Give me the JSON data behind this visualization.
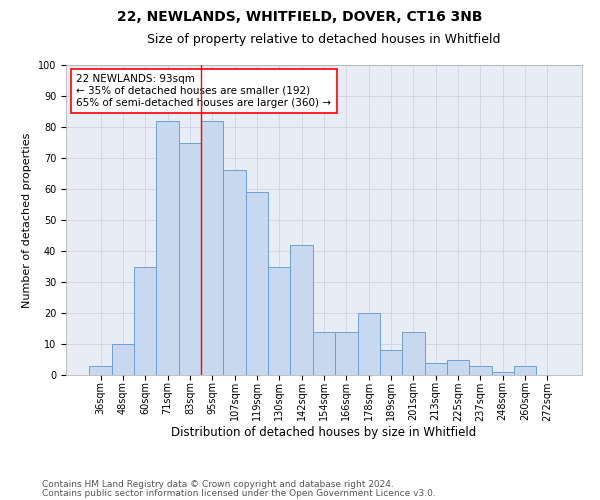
{
  "title1": "22, NEWLANDS, WHITFIELD, DOVER, CT16 3NB",
  "title2": "Size of property relative to detached houses in Whitfield",
  "xlabel": "Distribution of detached houses by size in Whitfield",
  "ylabel": "Number of detached properties",
  "categories": [
    "36sqm",
    "48sqm",
    "60sqm",
    "71sqm",
    "83sqm",
    "95sqm",
    "107sqm",
    "119sqm",
    "130sqm",
    "142sqm",
    "154sqm",
    "166sqm",
    "178sqm",
    "189sqm",
    "201sqm",
    "213sqm",
    "225sqm",
    "237sqm",
    "248sqm",
    "260sqm",
    "272sqm"
  ],
  "values": [
    3,
    10,
    35,
    82,
    75,
    82,
    66,
    59,
    35,
    42,
    14,
    14,
    20,
    8,
    14,
    4,
    5,
    3,
    1,
    3,
    0
  ],
  "bar_color": "#c8d9ef",
  "bar_edge_color": "#6a9fd8",
  "bar_edge_width": 0.7,
  "red_line_x": 4.5,
  "annotation_line1": "22 NEWLANDS: 93sqm",
  "annotation_line2": "← 35% of detached houses are smaller (192)",
  "annotation_line3": "65% of semi-detached houses are larger (360) →",
  "annotation_box_color": "white",
  "annotation_box_edge_color": "red",
  "grid_color": "#ccd5e5",
  "background_color": "#e8edf5",
  "footer1": "Contains HM Land Registry data © Crown copyright and database right 2024.",
  "footer2": "Contains public sector information licensed under the Open Government Licence v3.0.",
  "ylim": [
    0,
    100
  ],
  "title1_fontsize": 10,
  "title2_fontsize": 9,
  "xlabel_fontsize": 8.5,
  "ylabel_fontsize": 8,
  "tick_fontsize": 7,
  "annotation_fontsize": 7.5,
  "footer_fontsize": 6.5
}
